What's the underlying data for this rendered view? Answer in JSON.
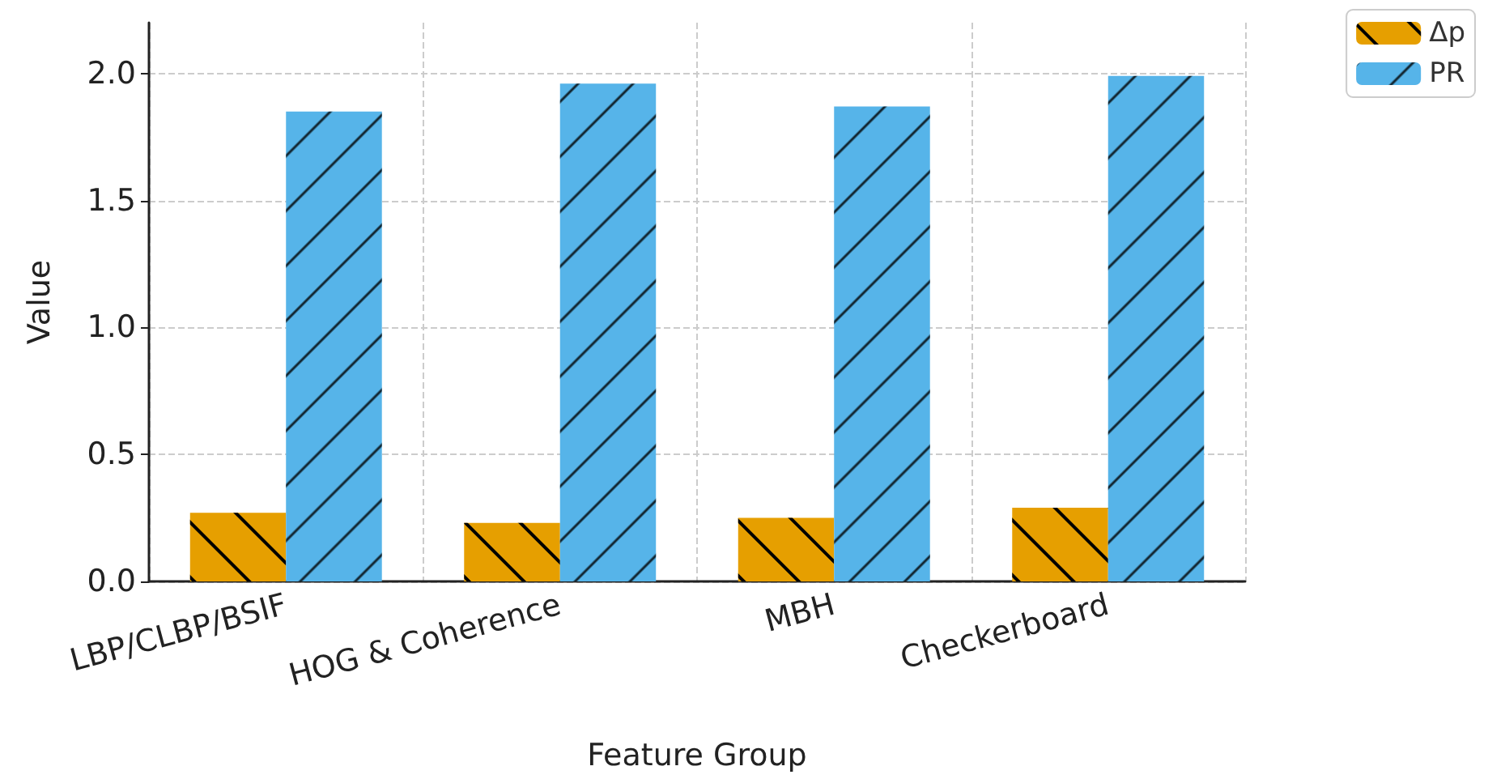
{
  "chart_data": {
    "type": "bar",
    "xlabel": "Feature Group",
    "ylabel": "Value",
    "categories": [
      "LBP/CLBP/BSIF",
      "HOG & Coherence",
      "MBH",
      "Checkerboard"
    ],
    "series": [
      {
        "name": "Δp",
        "color": "#e69f00",
        "values": [
          0.27,
          0.23,
          0.25,
          0.29
        ]
      },
      {
        "name": "PR",
        "color": "#56b4e9",
        "values": [
          1.85,
          1.96,
          1.87,
          1.99
        ]
      }
    ],
    "ylim": [
      0,
      2.2
    ],
    "yticks": [
      {
        "value": 0,
        "label": "0.0"
      },
      {
        "value": 0.5,
        "label": "0.5"
      },
      {
        "value": 1,
        "label": "1.0"
      },
      {
        "value": 1.5,
        "label": "1.5"
      },
      {
        "value": 2,
        "label": "2.0"
      }
    ],
    "grid": true,
    "legend": "top right"
  }
}
